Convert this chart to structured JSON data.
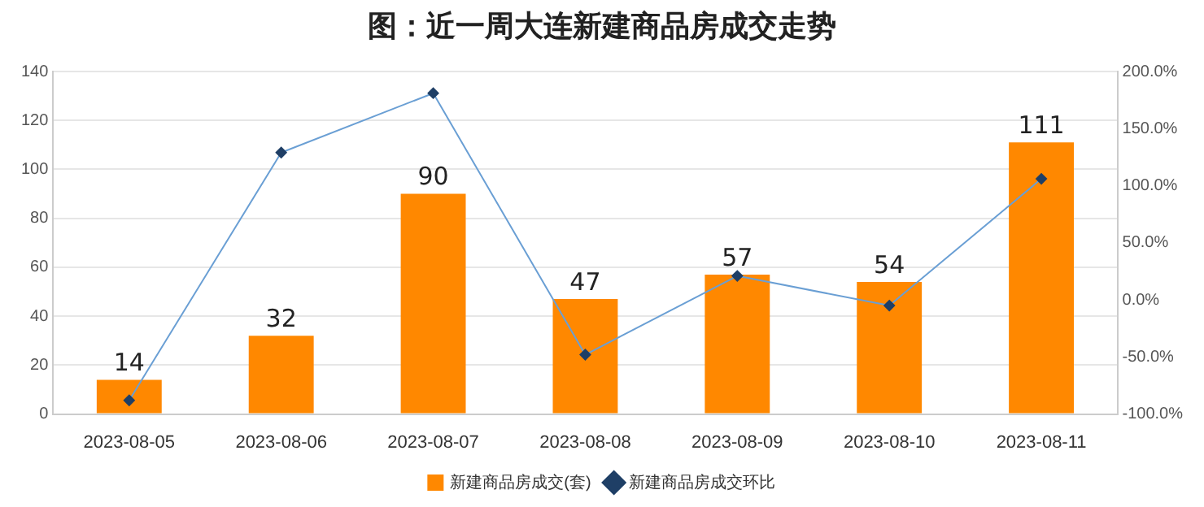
{
  "chart_data": {
    "type": "bar",
    "title": "图：近一周大连新建商品房成交走势",
    "categories": [
      "2023-08-05",
      "2023-08-06",
      "2023-08-07",
      "2023-08-08",
      "2023-08-09",
      "2023-08-10",
      "2023-08-11"
    ],
    "series": [
      {
        "name": "新建商品房成交(套)",
        "color": "#ff8800",
        "values": [
          14,
          32,
          90,
          47,
          57,
          54,
          111
        ],
        "value_labels": [
          "14",
          "32",
          "90",
          "47",
          "57",
          "54",
          "111"
        ]
      },
      {
        "name": "新建商品房成交环比",
        "type": "line",
        "axis": "y2",
        "color": "#6a9fd4",
        "marker": "diamond",
        "values": [
          -88,
          129,
          181,
          -48,
          21,
          -5,
          106
        ]
      }
    ],
    "ylim": [
      0,
      140
    ],
    "yticks": [
      0,
      20,
      40,
      60,
      80,
      100,
      120,
      140
    ],
    "y2lim": [
      -100,
      200
    ],
    "y2ticks": [
      {
        "value": -100,
        "label": "-100.0%"
      },
      {
        "value": -50,
        "label": "-50.0%"
      },
      {
        "value": 0,
        "label": "0.0%"
      },
      {
        "value": 50,
        "label": "50.0%"
      },
      {
        "value": 100,
        "label": "100.0%"
      },
      {
        "value": 150,
        "label": "150.0%"
      },
      {
        "value": 200,
        "label": "200.0%"
      }
    ],
    "grid": "y",
    "legend": "bottom"
  }
}
